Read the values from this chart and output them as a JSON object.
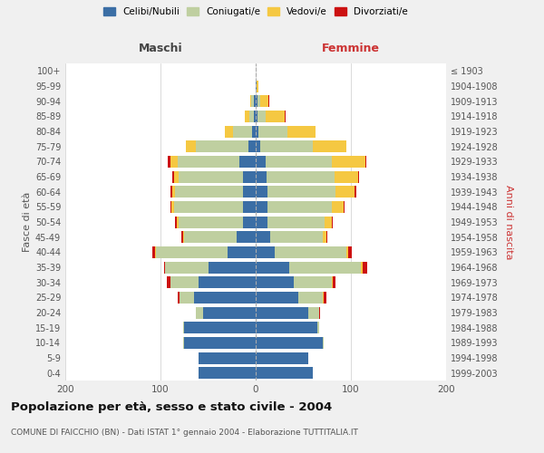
{
  "age_groups": [
    "0-4",
    "5-9",
    "10-14",
    "15-19",
    "20-24",
    "25-29",
    "30-34",
    "35-39",
    "40-44",
    "45-49",
    "50-54",
    "55-59",
    "60-64",
    "65-69",
    "70-74",
    "75-79",
    "80-84",
    "85-89",
    "90-94",
    "95-99",
    "100+"
  ],
  "birth_years": [
    "1999-2003",
    "1994-1998",
    "1989-1993",
    "1984-1988",
    "1979-1983",
    "1974-1978",
    "1969-1973",
    "1964-1968",
    "1959-1963",
    "1954-1958",
    "1949-1953",
    "1944-1948",
    "1939-1943",
    "1934-1938",
    "1929-1933",
    "1924-1928",
    "1919-1923",
    "1914-1918",
    "1909-1913",
    "1904-1908",
    "≤ 1903"
  ],
  "maschi": {
    "celibi": [
      60,
      60,
      75,
      75,
      55,
      65,
      60,
      50,
      30,
      20,
      13,
      13,
      13,
      13,
      17,
      8,
      4,
      2,
      2,
      0,
      0
    ],
    "coniugati": [
      0,
      0,
      1,
      1,
      8,
      15,
      30,
      45,
      75,
      55,
      68,
      73,
      72,
      68,
      65,
      55,
      20,
      5,
      3,
      0,
      0
    ],
    "vedovi": [
      0,
      0,
      0,
      0,
      0,
      0,
      0,
      0,
      1,
      1,
      2,
      3,
      3,
      5,
      8,
      10,
      8,
      4,
      1,
      0,
      0
    ],
    "divorziati": [
      0,
      0,
      0,
      0,
      0,
      2,
      3,
      1,
      3,
      2,
      2,
      1,
      2,
      2,
      2,
      0,
      0,
      0,
      0,
      0,
      0
    ]
  },
  "femmine": {
    "nubili": [
      60,
      55,
      70,
      65,
      55,
      45,
      40,
      35,
      20,
      15,
      12,
      12,
      12,
      11,
      10,
      5,
      3,
      2,
      2,
      1,
      0
    ],
    "coniugate": [
      0,
      0,
      1,
      2,
      12,
      25,
      40,
      75,
      75,
      55,
      60,
      68,
      72,
      72,
      70,
      55,
      30,
      8,
      3,
      0,
      0
    ],
    "vedove": [
      0,
      0,
      0,
      0,
      0,
      1,
      1,
      2,
      2,
      4,
      8,
      12,
      20,
      25,
      35,
      35,
      30,
      20,
      8,
      2,
      0
    ],
    "divorziate": [
      0,
      0,
      0,
      0,
      1,
      3,
      3,
      5,
      4,
      1,
      1,
      1,
      2,
      1,
      1,
      0,
      0,
      1,
      1,
      0,
      0
    ]
  },
  "colors": {
    "celibi": "#3B6EA5",
    "coniugati": "#BFCFA0",
    "vedovi": "#F5C842",
    "divorziati": "#CC1111"
  },
  "xlim": 200,
  "title": "Popolazione per età, sesso e stato civile - 2004",
  "subtitle": "COMUNE DI FAICCHIO (BN) - Dati ISTAT 1° gennaio 2004 - Elaborazione TUTTITALIA.IT",
  "xlabel_left": "Maschi",
  "xlabel_right": "Femmine",
  "ylabel_left": "Fasce di età",
  "ylabel_right": "Anni di nascita",
  "bg_color": "#f0f0f0",
  "plot_bg": "#ffffff",
  "grid_color": "#cccccc"
}
